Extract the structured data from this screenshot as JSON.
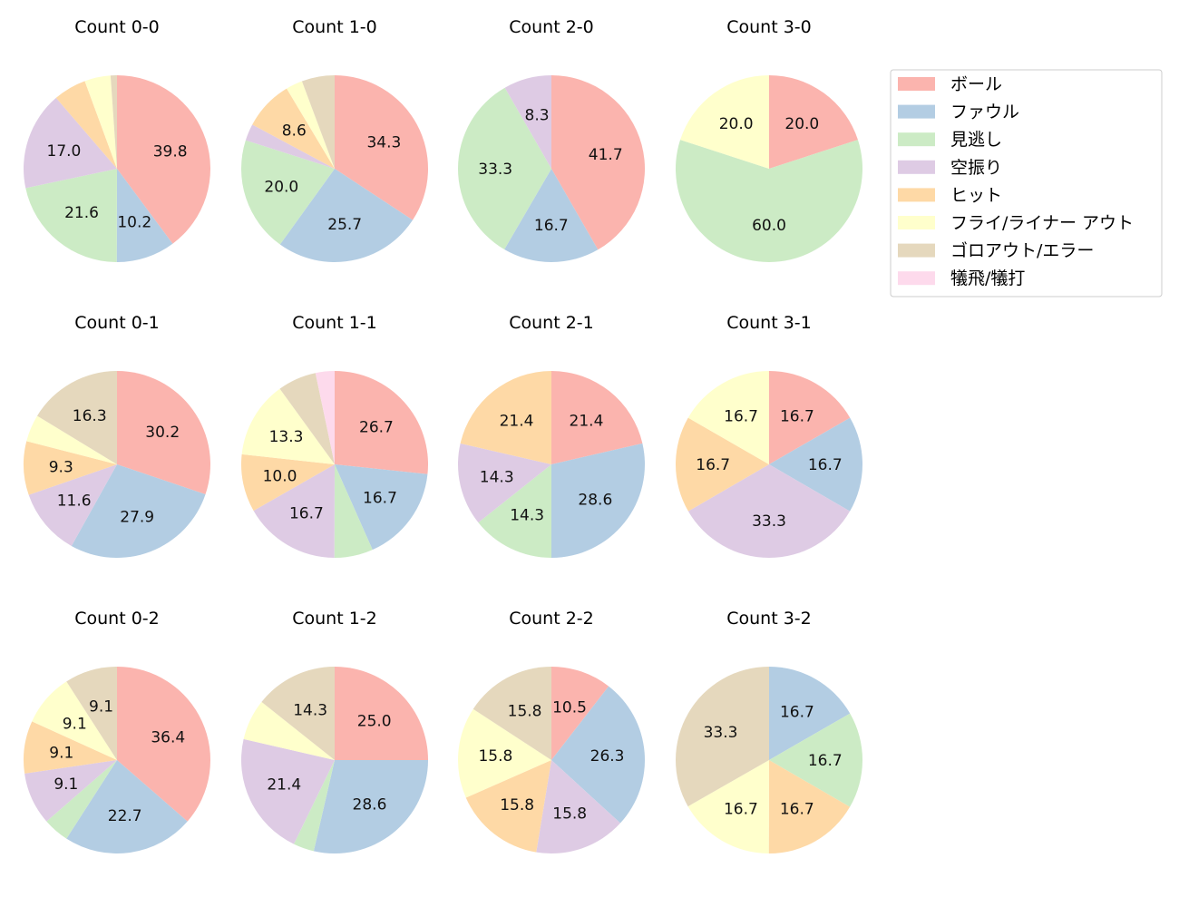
{
  "chart_data": {
    "type": "pie",
    "legend": {
      "placement": "right",
      "labels": [
        "ボール",
        "ファウル",
        "見逃し",
        "空振り",
        "ヒット",
        "フライ/ライナー アウト",
        "ゴロアウト/エラー",
        "犠飛/犠打"
      ]
    },
    "colors": [
      "#fbb4ae",
      "#b3cde3",
      "#ccebc5",
      "#decbe4",
      "#fed9a6",
      "#ffffcc",
      "#e5d8bd",
      "#fddaec"
    ],
    "label_threshold_percent": 7.5,
    "charts": [
      {
        "title": "Count 0-0",
        "values": [
          39.8,
          10.2,
          21.6,
          17.0,
          5.7,
          4.5,
          1.1,
          0
        ]
      },
      {
        "title": "Count 1-0",
        "values": [
          34.3,
          25.7,
          20.0,
          2.9,
          8.6,
          2.9,
          5.7,
          0
        ]
      },
      {
        "title": "Count 2-0",
        "values": [
          41.7,
          16.7,
          33.3,
          8.3,
          0,
          0,
          0,
          0
        ]
      },
      {
        "title": "Count 3-0",
        "values": [
          20.0,
          0,
          60.0,
          0,
          0,
          20.0,
          0,
          0
        ]
      },
      {
        "title": "Count 0-1",
        "values": [
          30.2,
          27.9,
          0,
          11.6,
          9.3,
          4.7,
          16.3,
          0
        ]
      },
      {
        "title": "Count 1-1",
        "values": [
          26.7,
          16.7,
          6.7,
          16.7,
          10.0,
          13.3,
          6.7,
          3.3
        ]
      },
      {
        "title": "Count 2-1",
        "values": [
          21.4,
          28.6,
          14.3,
          14.3,
          21.4,
          0,
          0,
          0
        ]
      },
      {
        "title": "Count 3-1",
        "values": [
          16.7,
          16.7,
          0,
          33.3,
          16.7,
          16.7,
          0,
          0
        ]
      },
      {
        "title": "Count 0-2",
        "values": [
          36.4,
          22.7,
          4.5,
          9.1,
          9.1,
          9.1,
          9.1,
          0
        ]
      },
      {
        "title": "Count 1-2",
        "values": [
          25.0,
          28.6,
          3.6,
          21.4,
          0,
          7.1,
          14.3,
          0
        ]
      },
      {
        "title": "Count 2-2",
        "values": [
          10.5,
          26.3,
          0,
          15.8,
          15.8,
          15.8,
          15.8,
          0
        ]
      },
      {
        "title": "Count 3-2",
        "values": [
          0,
          16.7,
          16.7,
          0,
          16.7,
          16.7,
          33.3,
          0
        ]
      }
    ]
  }
}
